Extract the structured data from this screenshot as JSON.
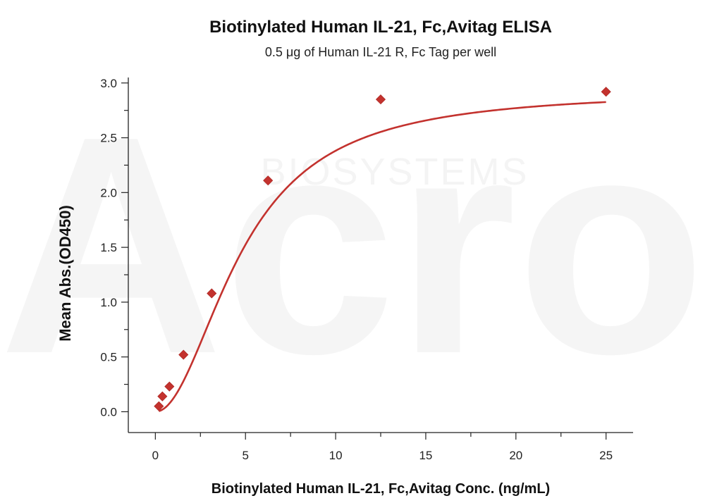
{
  "watermark": {
    "logo_text": "Acro",
    "brand_text": "BIOSYSTEMS"
  },
  "chart_data": {
    "type": "scatter",
    "title": "Biotinylated Human IL-21, Fc,Avitag ELISA",
    "subtitle": "0.5 μg of Human IL-21 R, Fc Tag per well",
    "xlabel": "Biotinylated Human IL-21, Fc,Avitag Conc. (ng/mL)",
    "ylabel": "Mean Abs.(OD450)",
    "xlim": [
      -1.5,
      26.5
    ],
    "ylim": [
      -0.19,
      3.05
    ],
    "xticks": [
      0,
      5,
      10,
      15,
      20,
      25
    ],
    "yticks": [
      0.0,
      0.5,
      1.0,
      1.5,
      2.0,
      2.5,
      3.0
    ],
    "xtick_labels": [
      "0",
      "5",
      "10",
      "15",
      "20",
      "25"
    ],
    "ytick_labels": [
      "0.0",
      "0.5",
      "1.0",
      "1.5",
      "2.0",
      "2.5",
      "3.0"
    ],
    "grid": false,
    "series": [
      {
        "color": "#c3322e",
        "marker": "diamond",
        "x": [
          0.195,
          0.39,
          0.78,
          1.56,
          3.125,
          6.25,
          12.5,
          25
        ],
        "y": [
          0.05,
          0.14,
          0.23,
          0.52,
          1.08,
          2.11,
          2.85,
          2.92
        ]
      }
    ],
    "fit_curve": {
      "model": "4PL",
      "bottom": 0.0,
      "top": 2.93,
      "ec50": 4.8,
      "hill": 2.0,
      "color": "#c3322e"
    }
  }
}
